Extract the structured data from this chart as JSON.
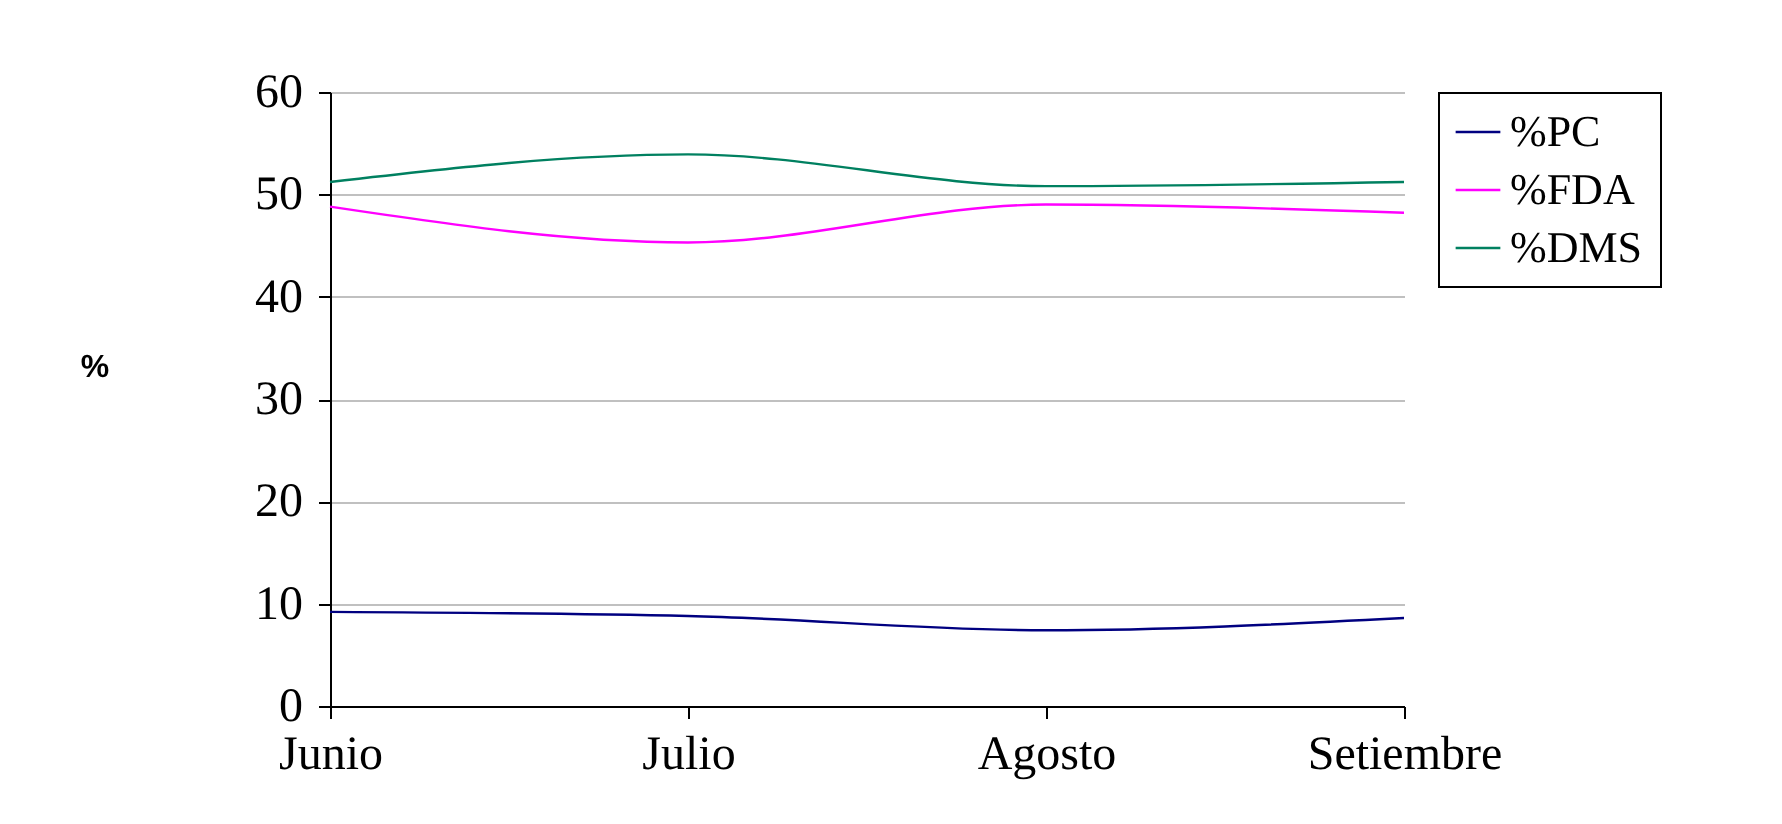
{
  "chart_data": {
    "type": "line",
    "ylabel": "%",
    "categories": [
      "Junio",
      "Julio",
      "Agosto",
      "Setiembre"
    ],
    "series": [
      {
        "name": "%PC",
        "color": "#000080",
        "values": [
          9.2,
          8.8,
          7.4,
          8.6
        ]
      },
      {
        "name": "%FDA",
        "color": "#ff00ff",
        "values": [
          48.8,
          45.3,
          49.0,
          48.2
        ]
      },
      {
        "name": "%DMS",
        "color": "#008060",
        "values": [
          51.2,
          53.9,
          50.8,
          51.2
        ]
      }
    ],
    "ylim": [
      0,
      60
    ],
    "yticks": [
      0,
      10,
      20,
      30,
      40,
      50,
      60
    ],
    "grid": "y",
    "legend": "right",
    "marker": "none",
    "line_style": "solid"
  }
}
